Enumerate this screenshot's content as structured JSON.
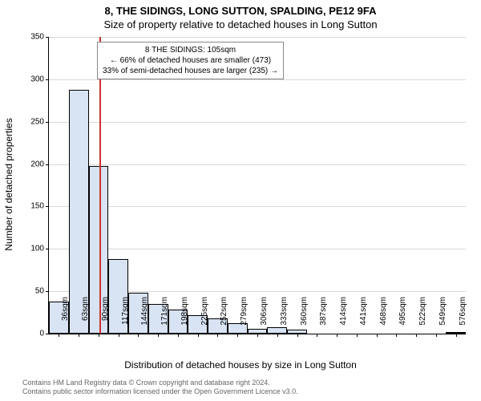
{
  "title_line1": "8, THE SIDINGS, LONG SUTTON, SPALDING, PE12 9FA",
  "title_line2": "Size of property relative to detached houses in Long Sutton",
  "ylabel": "Number of detached properties",
  "xlabel": "Distribution of detached houses by size in Long Sutton",
  "chart": {
    "type": "histogram",
    "background_color": "#ffffff",
    "bar_fill": "#d8e3f3",
    "bar_border": "#000000",
    "grid_color": "#d9d9d9",
    "ref_line_color": "#cc3232",
    "ylim": [
      0,
      350
    ],
    "ytick_step": 50,
    "categories": [
      "36sqm",
      "63sqm",
      "90sqm",
      "117sqm",
      "144sqm",
      "171sqm",
      "198sqm",
      "225sqm",
      "252sqm",
      "279sqm",
      "306sqm",
      "333sqm",
      "360sqm",
      "387sqm",
      "414sqm",
      "441sqm",
      "468sqm",
      "495sqm",
      "522sqm",
      "549sqm",
      "576sqm"
    ],
    "values": [
      38,
      288,
      198,
      88,
      48,
      35,
      28,
      22,
      18,
      12,
      6,
      8,
      5,
      0,
      0,
      0,
      0,
      0,
      0,
      0,
      2
    ],
    "bar_count": 21,
    "ref_line_index": 2.55,
    "annotation": {
      "line1": "8 THE SIDINGS: 105sqm",
      "line2": "← 66% of detached houses are smaller (473)",
      "line3": "33% of semi-detached houses are larger (235) →"
    }
  },
  "footer_line1": "Contains HM Land Registry data © Crown copyright and database right 2024.",
  "footer_line2": "Contains public sector information licensed under the Open Government Licence v3.0."
}
